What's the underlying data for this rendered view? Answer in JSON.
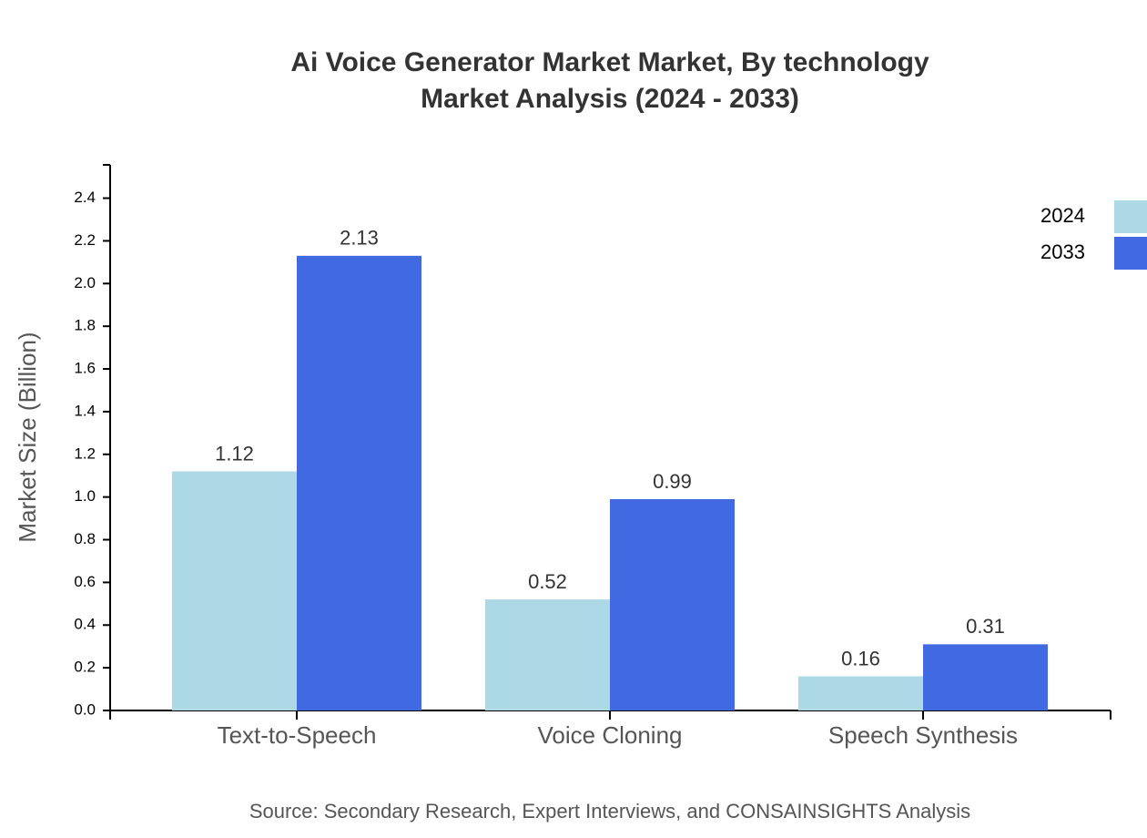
{
  "chart_data": {
    "type": "bar",
    "title": [
      "Ai Voice Generator Market Market, By technology",
      "Market Analysis (2024 - 2033)"
    ],
    "y_label": "Market Size (Billion)",
    "source": "Source: Secondary Research, Expert Interviews, and CONSAINSIGHTS Analysis",
    "categories": [
      "Text-to-Speech",
      "Voice Cloning",
      "Speech Synthesis"
    ],
    "series": [
      {
        "name": "2024",
        "color": "#add8e6",
        "values": [
          1.12,
          0.52,
          0.16
        ]
      },
      {
        "name": "2033",
        "color": "#4169e1",
        "values": [
          2.13,
          0.99,
          0.31
        ]
      }
    ],
    "ylim": [
      0,
      2.556
    ],
    "yticks": [
      {
        "value": 0,
        "label": "0.0"
      },
      0.2,
      0.4,
      0.6,
      0.8,
      {
        "value": 1,
        "label": "1.0"
      },
      1.2,
      1.4,
      1.6,
      1.8,
      {
        "value": 2,
        "label": "2.0"
      },
      2.2,
      2.4
    ],
    "legend": "top-right"
  }
}
